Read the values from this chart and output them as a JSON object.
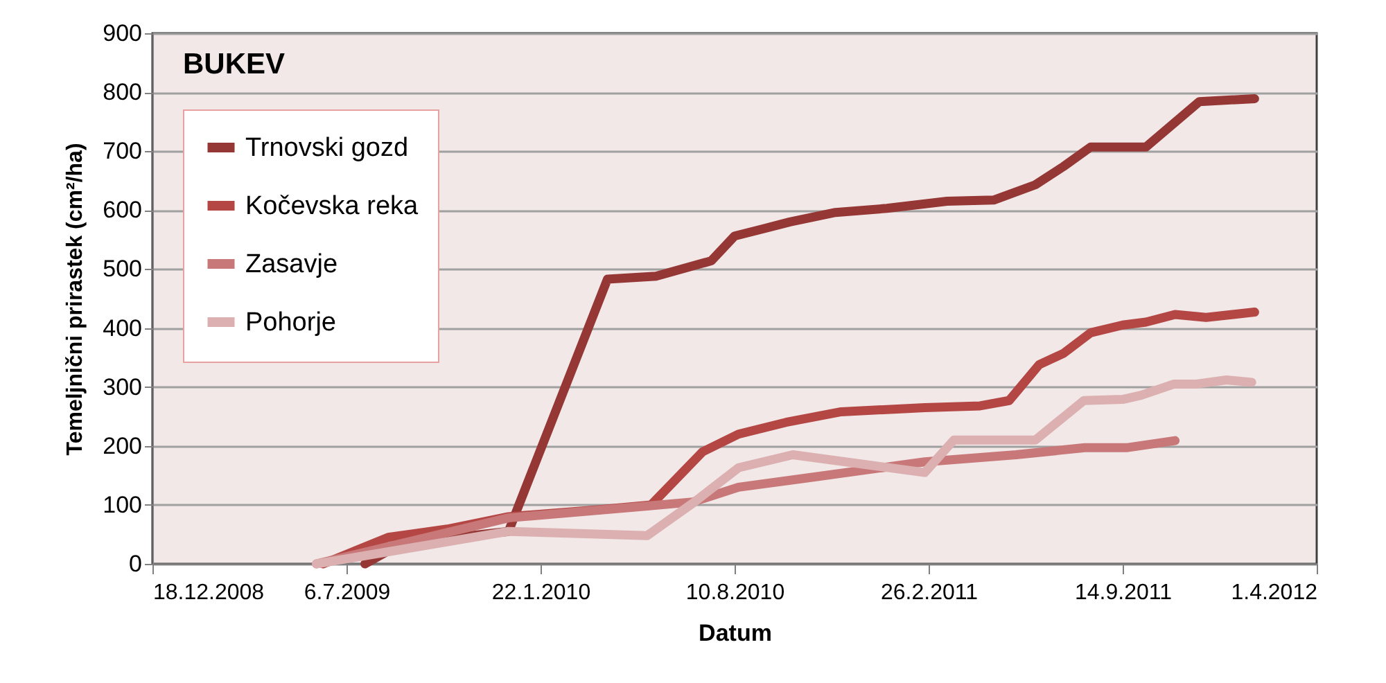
{
  "chart_data": {
    "type": "line",
    "title": "BUKEV",
    "xlabel": "Datum",
    "ylabel": "Temeljnični prirastek (cm²/ha)",
    "xlim": [
      "2008-12-18",
      "2012-04-01"
    ],
    "xticks": [
      {
        "value": "2008-12-18",
        "label": "18.12.2008"
      },
      {
        "value": "2009-07-06",
        "label": "6.7.2009"
      },
      {
        "value": "2010-01-22",
        "label": "22.1.2010"
      },
      {
        "value": "2010-08-10",
        "label": "10.8.2010"
      },
      {
        "value": "2011-02-26",
        "label": "26.2.2011"
      },
      {
        "value": "2011-09-14",
        "label": "14.9.2011"
      },
      {
        "value": "2012-04-01",
        "label": "1.4.2012"
      }
    ],
    "ylim": [
      0,
      900
    ],
    "yticks": [
      0,
      100,
      200,
      300,
      400,
      500,
      600,
      700,
      800,
      900
    ],
    "grid": "y",
    "legend": "top left",
    "line_style": "solid",
    "marker": "none",
    "series": [
      {
        "name": "Trnovski gozd",
        "color": "#953735",
        "x": [
          "2009-07-25",
          "2009-09-01",
          "2009-12-20",
          "2010-04-01",
          "2010-05-21",
          "2010-07-17",
          "2010-08-10",
          "2010-09-08",
          "2010-10-06",
          "2010-11-22",
          "2011-01-14",
          "2011-03-17",
          "2011-05-04",
          "2011-06-16",
          "2011-07-15",
          "2011-08-12",
          "2011-10-08",
          "2011-12-02",
          "2012-01-28"
        ],
        "values": [
          0,
          35,
          55,
          483,
          488,
          514,
          556,
          568,
          580,
          596,
          603,
          615,
          617,
          643,
          674,
          707,
          707,
          784,
          789
        ]
      },
      {
        "name": "Kočevska reka",
        "color": "#b44644",
        "x": [
          "2009-06-12",
          "2009-08-18",
          "2009-10-18",
          "2009-12-20",
          "2010-03-24",
          "2010-05-16",
          "2010-07-08",
          "2010-08-14",
          "2010-10-02",
          "2010-11-28",
          "2011-02-22",
          "2011-04-20",
          "2011-05-20",
          "2011-06-20",
          "2011-07-15",
          "2011-08-12",
          "2011-09-14",
          "2011-10-08",
          "2011-11-07",
          "2011-12-09",
          "2012-01-28"
        ],
        "values": [
          0,
          45,
          59,
          80,
          92,
          100,
          190,
          220,
          240,
          258,
          265,
          268,
          277,
          338,
          357,
          392,
          405,
          410,
          423,
          418,
          427
        ]
      },
      {
        "name": "Zasavje",
        "color": "#c87878",
        "x": [
          "2009-06-05",
          "2009-12-20",
          "2010-05-12",
          "2010-06-28",
          "2010-08-14",
          "2010-10-25",
          "2011-02-22",
          "2011-05-27",
          "2011-08-06",
          "2011-09-18",
          "2011-11-07"
        ],
        "values": [
          0,
          78,
          98,
          105,
          130,
          146,
          173,
          185,
          197,
          197,
          209
        ]
      },
      {
        "name": "Pohorje",
        "color": "#dcb0b0",
        "x": [
          "2009-06-05",
          "2009-12-20",
          "2010-05-12",
          "2010-06-28",
          "2010-08-14",
          "2010-10-09",
          "2011-02-22",
          "2011-03-24",
          "2011-06-16",
          "2011-08-05",
          "2011-09-14",
          "2011-10-03",
          "2011-11-06",
          "2011-11-29",
          "2011-12-30",
          "2012-01-25"
        ],
        "values": [
          0,
          55,
          48,
          103,
          163,
          185,
          155,
          210,
          210,
          277,
          279,
          286,
          305,
          305,
          312,
          308
        ]
      }
    ]
  }
}
